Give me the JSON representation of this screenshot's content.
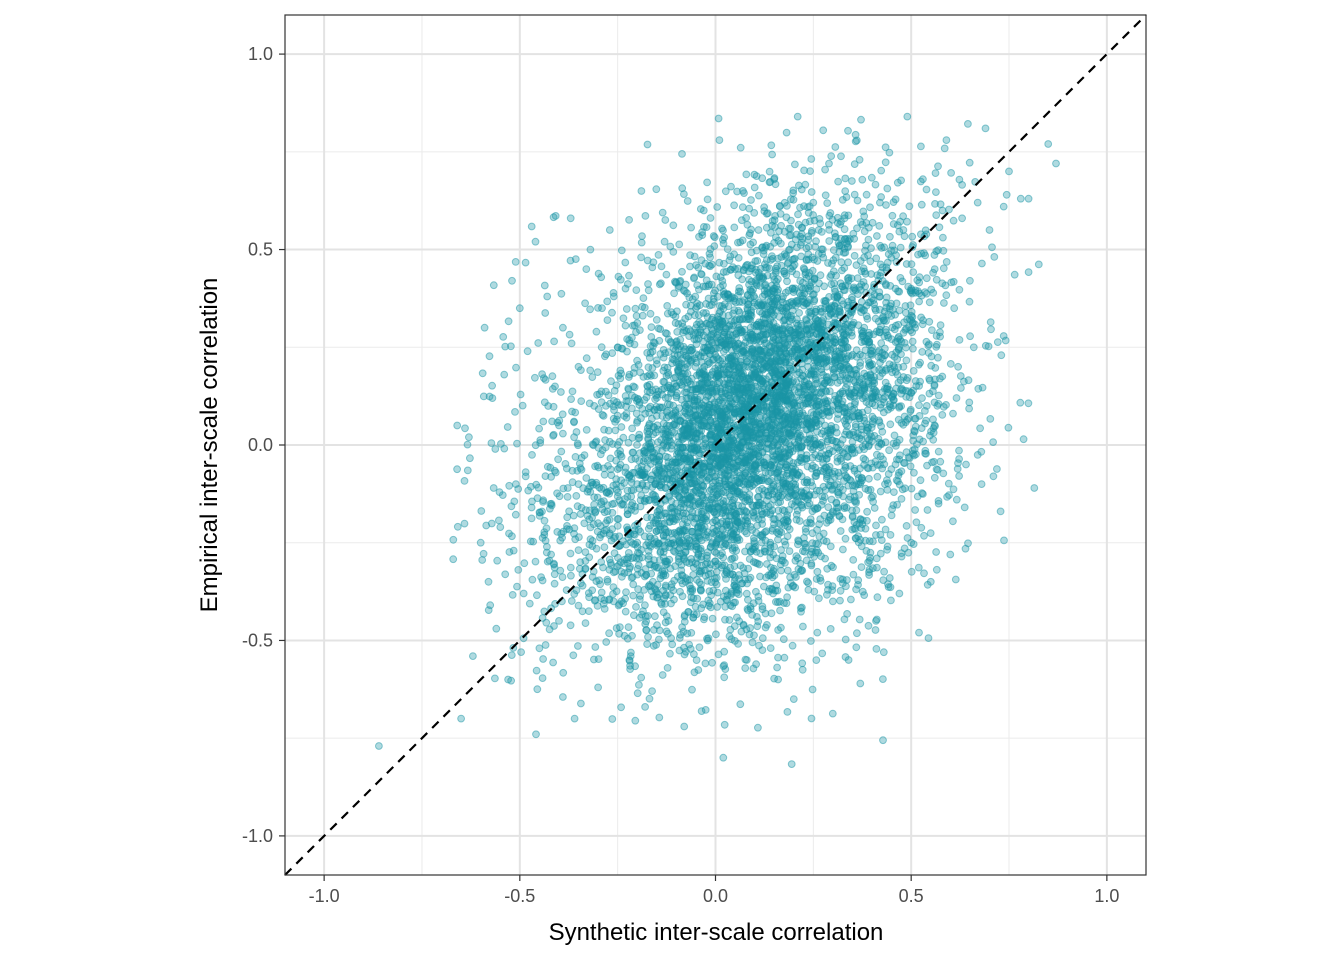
{
  "chart_data": {
    "type": "scatter",
    "title": "",
    "xlabel": "Synthetic inter-scale correlation",
    "ylabel": "Empirical inter-scale correlation",
    "xlim": [
      -1.1,
      1.1
    ],
    "ylim": [
      -1.1,
      1.1
    ],
    "x_ticks": [
      -1.0,
      -0.5,
      0.0,
      0.5,
      1.0
    ],
    "x_tick_labels": [
      "-1.0",
      "-0.5",
      "0.0",
      "0.5",
      "1.0"
    ],
    "y_ticks": [
      -1.0,
      -0.5,
      0.0,
      0.5,
      1.0
    ],
    "y_tick_labels": [
      "-1.0",
      "-0.5",
      "0.0",
      "0.5",
      "1.0"
    ],
    "grid": true,
    "reference_line": {
      "type": "identity",
      "style": "dashed",
      "color": "#000000"
    },
    "point_color": "#1b96a6",
    "point_alpha": 0.35,
    "approx_point_count": 6000,
    "points": [
      [
        -0.86,
        -0.77
      ],
      [
        -0.66,
        0.05
      ],
      [
        -0.65,
        -0.7
      ],
      [
        -0.63,
        0.02
      ],
      [
        -0.62,
        -0.54
      ],
      [
        -0.6,
        -0.25
      ],
      [
        -0.59,
        0.3
      ],
      [
        -0.58,
        -0.35
      ],
      [
        -0.57,
        0.12
      ],
      [
        -0.56,
        -0.47
      ],
      [
        -0.55,
        -0.21
      ],
      [
        -0.54,
        0.18
      ],
      [
        -0.53,
        -0.6
      ],
      [
        -0.52,
        0.42
      ],
      [
        -0.51,
        -0.1
      ],
      [
        -0.5,
        0.35
      ],
      [
        -0.49,
        -0.38
      ],
      [
        -0.48,
        0.24
      ],
      [
        -0.47,
        -0.16
      ],
      [
        -0.46,
        0.52
      ],
      [
        -0.45,
        -0.52
      ],
      [
        -0.44,
        0.06
      ],
      [
        -0.43,
        0.38
      ],
      [
        -0.42,
        -0.28
      ],
      [
        -0.41,
        0.15
      ],
      [
        -0.4,
        -0.45
      ],
      [
        -0.39,
        0.3
      ],
      [
        -0.38,
        -0.06
      ],
      [
        -0.37,
        0.58
      ],
      [
        -0.36,
        -0.7
      ],
      [
        -0.35,
        0.2
      ],
      [
        -0.34,
        -0.33
      ],
      [
        -0.33,
        0.45
      ],
      [
        -0.32,
        -0.12
      ],
      [
        -0.31,
        0.1
      ],
      [
        -0.3,
        -0.62
      ],
      [
        -0.29,
        0.35
      ],
      [
        -0.28,
        -0.2
      ],
      [
        -0.27,
        0.55
      ],
      [
        -0.26,
        -0.4
      ],
      [
        -0.25,
        0.25
      ],
      [
        -0.24,
        -0.03
      ],
      [
        -0.23,
        0.4
      ],
      [
        -0.22,
        -0.55
      ],
      [
        -0.21,
        0.15
      ],
      [
        -0.2,
        -0.25
      ],
      [
        -0.19,
        0.48
      ],
      [
        -0.18,
        -0.67
      ],
      [
        -0.17,
        0.05
      ],
      [
        -0.16,
        -0.35
      ],
      [
        -0.15,
        0.32
      ],
      [
        -0.14,
        -0.15
      ],
      [
        -0.13,
        0.52
      ],
      [
        -0.12,
        -0.45
      ],
      [
        -0.11,
        0.22
      ],
      [
        -0.1,
        -0.08
      ],
      [
        -0.09,
        0.42
      ],
      [
        -0.08,
        -0.72
      ],
      [
        -0.07,
        0.12
      ],
      [
        -0.06,
        -0.3
      ],
      [
        -0.05,
        0.35
      ],
      [
        -0.04,
        -0.2
      ],
      [
        -0.03,
        0.6
      ],
      [
        -0.02,
        -0.5
      ],
      [
        -0.01,
        0.18
      ],
      [
        0.0,
        0.02
      ],
      [
        0.01,
        0.78
      ],
      [
        0.02,
        -0.8
      ],
      [
        0.03,
        0.25
      ],
      [
        0.04,
        -0.38
      ],
      [
        0.05,
        0.45
      ],
      [
        0.06,
        -0.12
      ],
      [
        0.07,
        0.65
      ],
      [
        0.08,
        -0.55
      ],
      [
        0.09,
        0.3
      ],
      [
        0.1,
        0.08
      ],
      [
        0.11,
        0.55
      ],
      [
        0.12,
        -0.42
      ],
      [
        0.13,
        0.2
      ],
      [
        0.14,
        -0.25
      ],
      [
        0.15,
        0.68
      ],
      [
        0.16,
        -0.6
      ],
      [
        0.17,
        0.35
      ],
      [
        0.18,
        -0.05
      ],
      [
        0.19,
        0.5
      ],
      [
        0.2,
        -0.65
      ],
      [
        0.21,
        0.84
      ],
      [
        0.22,
        -0.32
      ],
      [
        0.23,
        0.4
      ],
      [
        0.24,
        -0.15
      ],
      [
        0.25,
        0.62
      ],
      [
        0.26,
        -0.48
      ],
      [
        0.27,
        0.28
      ],
      [
        0.28,
        0.05
      ],
      [
        0.29,
        0.72
      ],
      [
        0.3,
        -0.4
      ],
      [
        0.31,
        0.22
      ],
      [
        0.32,
        -0.22
      ],
      [
        0.33,
        0.58
      ],
      [
        0.34,
        -0.55
      ],
      [
        0.35,
        0.35
      ],
      [
        0.36,
        -0.1
      ],
      [
        0.37,
        -0.61
      ],
      [
        0.38,
        0.48
      ],
      [
        0.39,
        -0.3
      ],
      [
        0.4,
        0.25
      ],
      [
        0.41,
        -0.45
      ],
      [
        0.42,
        0.62
      ],
      [
        0.43,
        -0.53
      ],
      [
        0.44,
        0.15
      ],
      [
        0.45,
        -0.18
      ],
      [
        0.46,
        0.4
      ],
      [
        0.47,
        -0.38
      ],
      [
        0.48,
        0.55
      ],
      [
        0.49,
        0.84
      ],
      [
        0.5,
        -0.25
      ],
      [
        0.51,
        0.3
      ],
      [
        0.52,
        -0.48
      ],
      [
        0.53,
        0.68
      ],
      [
        0.54,
        0.1
      ],
      [
        0.55,
        -0.35
      ],
      [
        0.56,
        0.45
      ],
      [
        0.57,
        -0.15
      ],
      [
        0.58,
        0.6
      ],
      [
        0.59,
        0.78
      ],
      [
        0.6,
        -0.28
      ],
      [
        0.61,
        0.35
      ],
      [
        0.62,
        0.2
      ],
      [
        0.63,
        0.58
      ],
      [
        0.64,
        -0.05
      ],
      [
        0.65,
        0.42
      ],
      [
        0.66,
        0.25
      ],
      [
        0.67,
        0.62
      ],
      [
        0.68,
        -0.1
      ],
      [
        0.69,
        0.81
      ],
      [
        0.7,
        0.55
      ],
      [
        0.71,
        -0.08
      ],
      [
        0.75,
        0.7
      ],
      [
        0.78,
        0.63
      ],
      [
        0.8,
        0.63
      ],
      [
        0.85,
        0.77
      ],
      [
        0.87,
        0.72
      ],
      [
        -0.28,
        0.1
      ],
      [
        -0.25,
        0.0
      ],
      [
        -0.22,
        0.18
      ],
      [
        -0.2,
        -0.1
      ],
      [
        -0.18,
        0.08
      ],
      [
        -0.15,
        -0.18
      ],
      [
        -0.12,
        0.02
      ],
      [
        -0.1,
        0.15
      ],
      [
        -0.08,
        -0.22
      ],
      [
        -0.05,
        0.1
      ],
      [
        -0.02,
        0.25
      ],
      [
        0.0,
        -0.15
      ],
      [
        0.02,
        0.2
      ],
      [
        0.04,
        0.05
      ],
      [
        0.06,
        0.3
      ],
      [
        0.08,
        -0.05
      ],
      [
        0.1,
        0.22
      ],
      [
        0.12,
        0.12
      ],
      [
        0.14,
        0.32
      ],
      [
        0.16,
        0.0
      ],
      [
        0.18,
        0.18
      ],
      [
        0.2,
        0.28
      ],
      [
        0.22,
        -0.08
      ],
      [
        0.24,
        0.15
      ],
      [
        0.26,
        0.25
      ],
      [
        0.28,
        0.35
      ],
      [
        0.3,
        0.1
      ],
      [
        0.32,
        0.2
      ],
      [
        0.34,
        0.42
      ],
      [
        0.36,
        0.02
      ],
      [
        0.38,
        0.3
      ],
      [
        0.4,
        0.12
      ],
      [
        0.42,
        0.38
      ],
      [
        0.44,
        0.28
      ],
      [
        0.46,
        -0.05
      ],
      [
        0.48,
        0.2
      ],
      [
        0.5,
        0.4
      ],
      [
        -0.3,
        -0.2
      ],
      [
        -0.35,
        -0.1
      ],
      [
        -0.4,
        0.05
      ]
    ]
  }
}
